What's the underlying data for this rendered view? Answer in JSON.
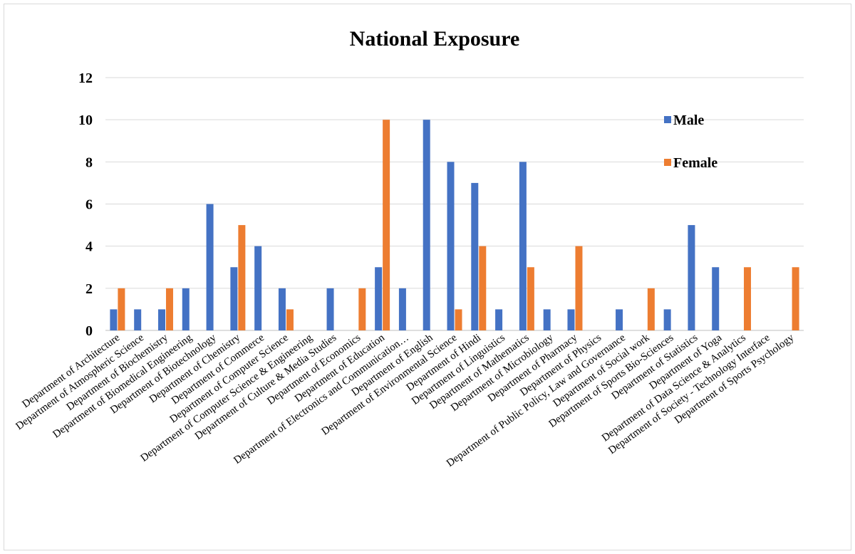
{
  "chart_data": {
    "type": "bar",
    "title": "National Exposure",
    "xlabel": "",
    "ylabel": "",
    "ylim": [
      0,
      12
    ],
    "yticks": [
      0,
      2,
      4,
      6,
      8,
      10,
      12
    ],
    "grid": true,
    "legend_position": "right",
    "categories": [
      "Department of Architecture",
      "Department of Atmospheric Science",
      "Department of Biochemistry",
      "Department of Biomedical Engineering",
      "Department of Biotechnology",
      "Department of Chemistry",
      "Department of Commerce",
      "Department of Computer Science",
      "Department of Computer Science & Engineering",
      "Department of Culture & Media Studies",
      "Department of Economics",
      "Department of Education",
      "Department of Electronics and Communication…",
      "Department of English",
      "Department of Environmental Science",
      "Department of Hindi",
      "Department of Linguistics",
      "Department of Mathematics",
      "Department of Microbiology",
      "Department of Pharmacy",
      "Department of Physics",
      "Department of Public Policy, Law and Governance",
      "Department of Social work",
      "Department of Sports Bio-Sciences",
      "Department of Statistics",
      "Department of Yoga",
      "Department of Data Science & Analytics",
      "Department of Society - Technology Interface",
      "Department of Sports Psychology"
    ],
    "series": [
      {
        "name": "Male",
        "color": "#4472c4",
        "values": [
          1,
          1,
          1,
          2,
          6,
          3,
          4,
          2,
          0,
          2,
          0,
          3,
          2,
          10,
          8,
          7,
          1,
          8,
          1,
          1,
          0,
          1,
          0,
          1,
          5,
          3,
          0,
          0,
          0
        ]
      },
      {
        "name": "Female",
        "color": "#ed7d31",
        "values": [
          2,
          0,
          2,
          0,
          0,
          5,
          0,
          1,
          0,
          0,
          2,
          10,
          0,
          0,
          1,
          4,
          0,
          3,
          0,
          4,
          0,
          0,
          2,
          0,
          0,
          0,
          3,
          0,
          3
        ]
      }
    ]
  }
}
